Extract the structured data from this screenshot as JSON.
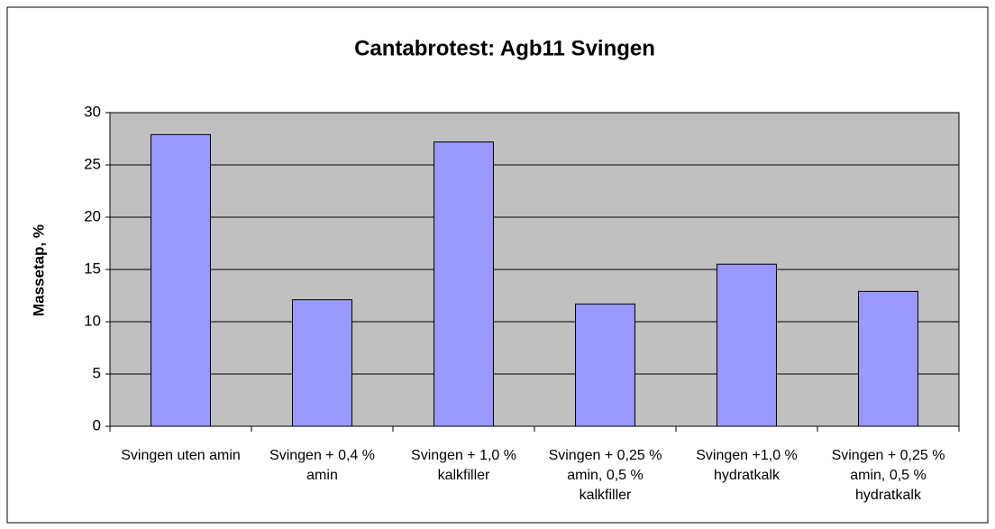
{
  "chart_data": {
    "type": "bar",
    "title": "Cantabrotest: Agb11 Svingen",
    "y_label": "Massetap, %",
    "categories": [
      "Svingen uten amin",
      "Svingen + 0,4 % amin",
      "Svingen + 1,0 % kalkfiller",
      "Svingen + 0,25 % amin, 0,5 % kalkfiller",
      "Svingen +1,0 % hydratkalk",
      "Svingen + 0,25 % amin, 0,5 % hydratkalk"
    ],
    "values": [
      27.9,
      12.1,
      27.2,
      11.7,
      15.5,
      12.9
    ],
    "color": "#9999ff",
    "ylim": [
      0,
      30
    ],
    "yticks": [
      0,
      5,
      10,
      15,
      20,
      25,
      30
    ],
    "grid": true
  }
}
